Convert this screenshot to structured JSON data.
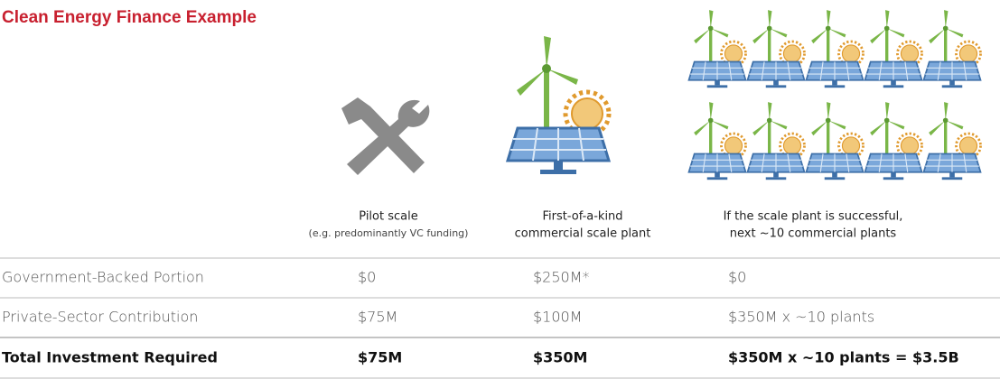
{
  "title": "Clean Energy Finance Example",
  "columns": [
    {
      "lines": [
        "Pilot scale"
      ],
      "note": "(e.g. predominantly VC funding)"
    },
    {
      "lines": [
        "First-of-a-kind",
        "commercial scale plant"
      ]
    },
    {
      "lines": [
        "If the scale plant is successful,",
        "next ~10 commercial plants"
      ]
    }
  ],
  "rows": [
    {
      "label": "Government-Backed Portion",
      "cells": [
        "$0",
        "$250M*",
        "$0"
      ]
    },
    {
      "label": "Private-Sector Contribution",
      "cells": [
        "$75M",
        "$100M",
        "$350M x ~10 plants"
      ]
    },
    {
      "label": "Total Investment Required",
      "cells": [
        "$75M",
        "$350M",
        "$350M x ~10 plants = $3.5B"
      ]
    }
  ]
}
